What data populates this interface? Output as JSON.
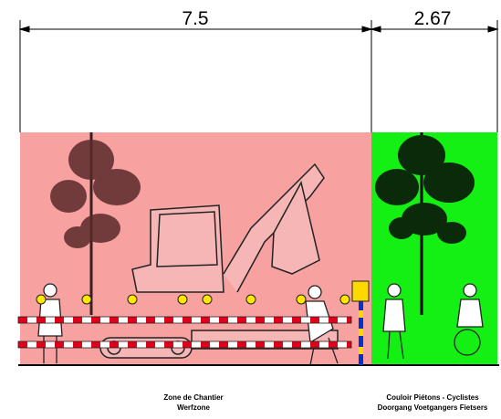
{
  "dimensions": {
    "left": "7.5",
    "right": "2.67"
  },
  "zones": [
    {
      "line1": "Zone de Chantier",
      "line2": "Werfzone"
    },
    {
      "line1": "Couloir Piétons - Cyclistes",
      "line2": "Doorgang Voetgangers Fietsers"
    }
  ]
}
